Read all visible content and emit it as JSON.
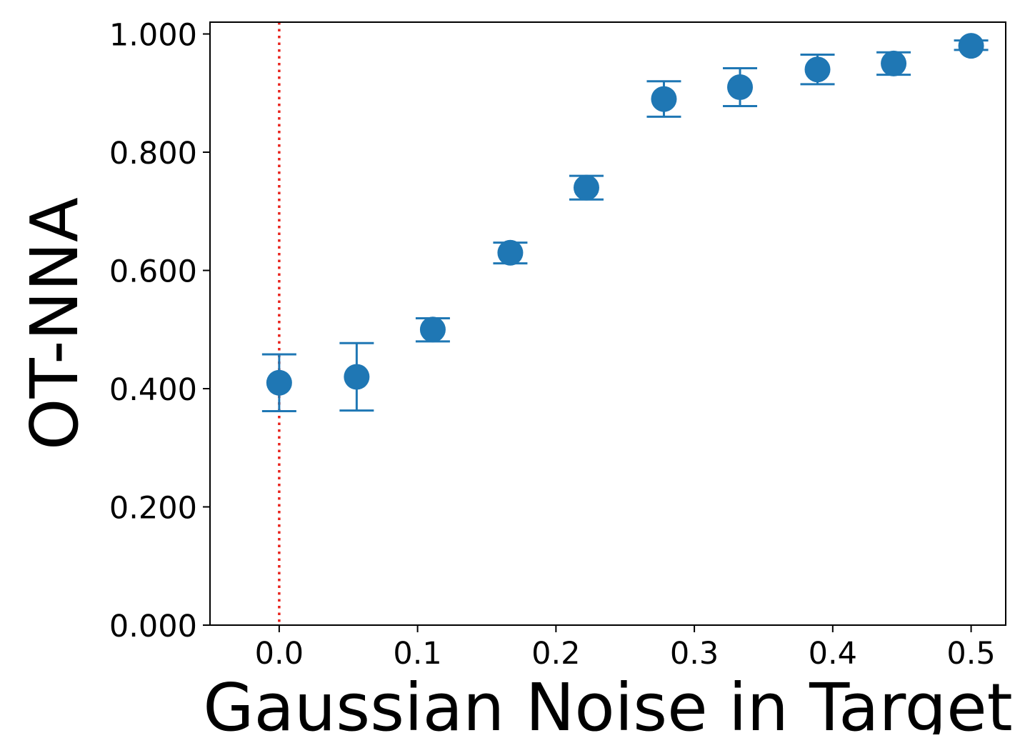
{
  "chart_data": {
    "type": "scatter",
    "title": "",
    "xlabel": "Gaussian Noise in Target",
    "ylabel": "OT-NNA",
    "xlim": [
      -0.05,
      0.525
    ],
    "ylim": [
      0.0,
      1.02
    ],
    "x_ticks": [
      0.0,
      0.1,
      0.2,
      0.3,
      0.4,
      0.5
    ],
    "x_tick_labels": [
      "0.0",
      "0.1",
      "0.2",
      "0.3",
      "0.4",
      "0.5"
    ],
    "y_ticks": [
      0.0,
      0.2,
      0.4,
      0.6,
      0.8,
      1.0
    ],
    "y_tick_labels": [
      "0.000",
      "0.200",
      "0.400",
      "0.600",
      "0.800",
      "1.000"
    ],
    "grid": false,
    "reference_line": {
      "x": 0.0,
      "style": "dotted",
      "color": "#e8231c"
    },
    "series": [
      {
        "color": "#1f77b4",
        "points": [
          {
            "x": 0.0,
            "y": 0.41,
            "y_low": 0.362,
            "y_high": 0.458
          },
          {
            "x": 0.056,
            "y": 0.42,
            "y_low": 0.363,
            "y_high": 0.477
          },
          {
            "x": 0.111,
            "y": 0.5,
            "y_low": 0.48,
            "y_high": 0.519
          },
          {
            "x": 0.167,
            "y": 0.63,
            "y_low": 0.612,
            "y_high": 0.647
          },
          {
            "x": 0.222,
            "y": 0.74,
            "y_low": 0.72,
            "y_high": 0.76
          },
          {
            "x": 0.278,
            "y": 0.89,
            "y_low": 0.86,
            "y_high": 0.92
          },
          {
            "x": 0.333,
            "y": 0.91,
            "y_low": 0.878,
            "y_high": 0.942
          },
          {
            "x": 0.389,
            "y": 0.94,
            "y_low": 0.915,
            "y_high": 0.965
          },
          {
            "x": 0.444,
            "y": 0.95,
            "y_low": 0.931,
            "y_high": 0.969
          },
          {
            "x": 0.5,
            "y": 0.98,
            "y_low": 0.973,
            "y_high": 0.989
          }
        ]
      }
    ]
  }
}
